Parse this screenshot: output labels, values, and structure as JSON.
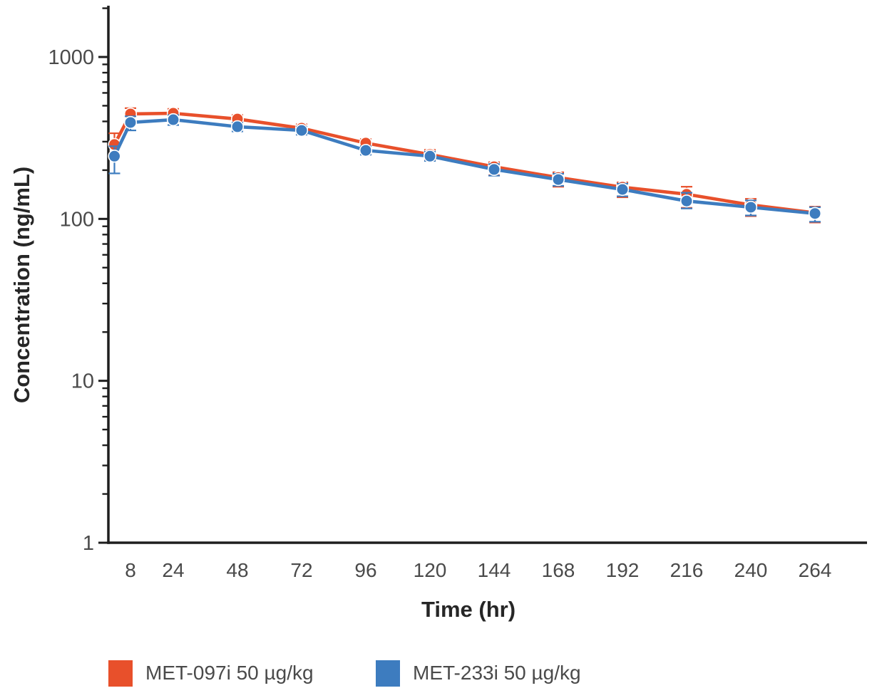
{
  "background_color": "#ffffff",
  "chart_data": {
    "type": "line",
    "title": "",
    "xlabel": "Time (hr)",
    "ylabel": "Concentration (ng/mL)",
    "y_scale": "log",
    "ylim": [
      1,
      2000
    ],
    "xlim": [
      0,
      283
    ],
    "grid": false,
    "legend_position": "bottom",
    "y_ticks": [
      1,
      10,
      100,
      1000
    ],
    "y_tick_labels": [
      "1",
      "10",
      "100",
      "1000"
    ],
    "x_ticks": [
      8,
      24,
      48,
      72,
      96,
      120,
      144,
      168,
      192,
      216,
      240,
      264
    ],
    "x": [
      2,
      8,
      24,
      48,
      72,
      96,
      120,
      144,
      168,
      192,
      216,
      240,
      264
    ],
    "series": [
      {
        "name": "MET-097i 50 µg/kg",
        "color": "#E8502B",
        "marker": "circle",
        "values": [
          288,
          445,
          449,
          414,
          363,
          294,
          250,
          210,
          180,
          157,
          142,
          122,
          109
        ],
        "err_lo": [
          237,
          405,
          420,
          388,
          342,
          277,
          233,
          186,
          158,
          136,
          117,
          104,
          95
        ],
        "err_hi": [
          338,
          483,
          478,
          438,
          384,
          311,
          267,
          224,
          194,
          168,
          158,
          133,
          119
        ]
      },
      {
        "name": "MET-233i 50 µg/kg",
        "color": "#3D7CBF",
        "marker": "circle",
        "values": [
          244,
          394,
          410,
          371,
          352,
          265,
          244,
          202,
          175,
          152,
          129,
          118,
          108
        ],
        "err_lo": [
          191,
          352,
          380,
          347,
          331,
          249,
          228,
          185,
          160,
          138,
          116,
          105,
          96
        ],
        "err_hi": [
          281,
          430,
          438,
          393,
          371,
          281,
          260,
          218,
          190,
          165,
          145,
          130,
          118
        ]
      }
    ],
    "axis_color": "#1e1e1e",
    "tick_label_color": "#4a4a4a"
  }
}
